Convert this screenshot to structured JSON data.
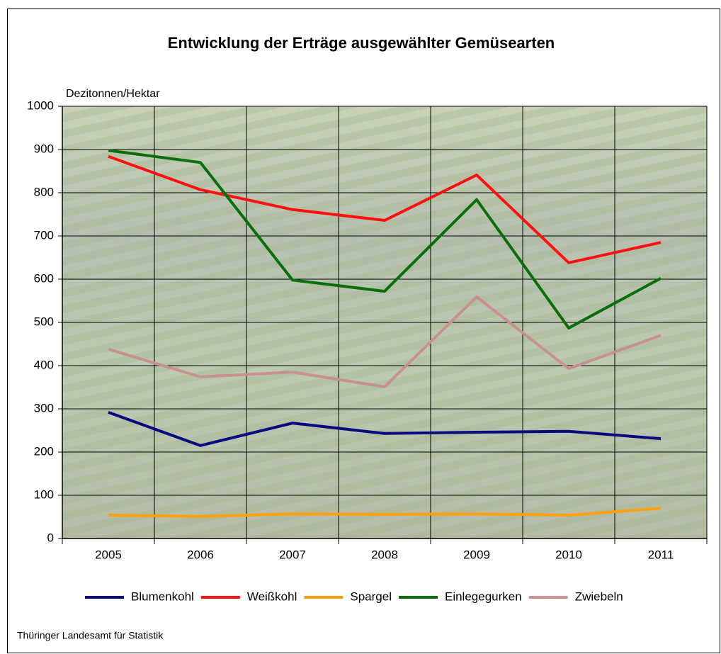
{
  "chart_data": {
    "type": "line",
    "title": "Entwicklung der Erträge ausgewählter Gemüsearten",
    "y_label": "Dezitonnen/Hektar",
    "source": "Thüringer Landesamt für Statistik",
    "categories": [
      "2005",
      "2006",
      "2007",
      "2008",
      "2009",
      "2010",
      "2011"
    ],
    "series": [
      {
        "name": "Blumenkohl",
        "color": "#0a0a80",
        "values": [
          292,
          215,
          267,
          243,
          246,
          248,
          231
        ]
      },
      {
        "name": "Weißkohl",
        "color": "#ff1010",
        "values": [
          884,
          807,
          761,
          736,
          841,
          638,
          685
        ]
      },
      {
        "name": "Spargel",
        "color": "#ffa010",
        "values": [
          54,
          51,
          57,
          56,
          57,
          54,
          70
        ]
      },
      {
        "name": "Einlegegurken",
        "color": "#0a6e0a",
        "values": [
          898,
          870,
          598,
          572,
          784,
          487,
          602
        ]
      },
      {
        "name": "Zwiebeln",
        "color": "#c89090",
        "values": [
          438,
          374,
          385,
          351,
          559,
          393,
          470
        ]
      }
    ],
    "ylim": [
      0,
      1000
    ],
    "yticks": [
      0,
      100,
      200,
      300,
      400,
      500,
      600,
      700,
      800,
      900,
      1000
    ],
    "grid": true,
    "legend": "bottom"
  }
}
